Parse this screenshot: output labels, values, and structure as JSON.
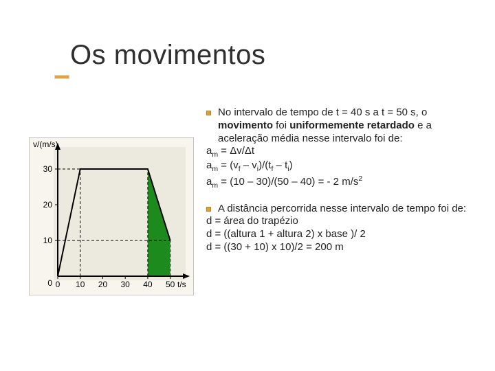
{
  "title": "Os movimentos",
  "block1": {
    "bullet_pre": "No intervalo de tempo de t = 40 s a t = 50 s, o ",
    "bullet_bold1": "movimento",
    "bullet_mid": " foi ",
    "bullet_bold2": "uniformemente retardado",
    "bullet_post": " e a aceleração média nesse intervalo foi de:",
    "eq1_lhs": "a",
    "eq1_sub": "m",
    "eq1_rhs": " = Δv/Δt",
    "eq2_lhs": "a",
    "eq2_sub": "m",
    "eq2_rhs_a": " = (v",
    "eq2_sub_f": "f",
    "eq2_rhs_b": " – v",
    "eq2_sub_i": "i",
    "eq2_rhs_c": ")/(t",
    "eq2_sub_tf": "f",
    "eq2_rhs_d": " – t",
    "eq2_sub_ti": "i",
    "eq2_rhs_e": ")",
    "eq3_lhs": "a",
    "eq3_sub": "m",
    "eq3_rhs_a": " = (10 – 30)/(50 – 40) = - 2 m/s",
    "eq3_sup": "2"
  },
  "block2": {
    "bullet_text": "A distância percorrida nesse intervalo de tempo foi de:",
    "eq1": "d = área do trapézio",
    "eq2": "d = ((altura 1 + altura 2) x base )/ 2",
    "eq3": "d = ((30 + 10) x 10)/2 = 200 m"
  },
  "chart": {
    "ylabel": "v/(m/s)",
    "xlabel": "t/s",
    "bg_inner": "#eceadf",
    "bg_outer": "#f7f5ee",
    "axis_color": "#000000",
    "line_color": "#000000",
    "dash_color": "#000000",
    "fill_color": "#1d8a1d",
    "x_ticks": [
      0,
      10,
      20,
      30,
      40,
      50
    ],
    "y_ticks": [
      0,
      10,
      20,
      30
    ],
    "xlim": [
      0,
      55
    ],
    "ylim": [
      0,
      35
    ],
    "points": [
      [
        0,
        0
      ],
      [
        10,
        30
      ],
      [
        40,
        30
      ],
      [
        50,
        10
      ]
    ],
    "fill_poly": [
      [
        40,
        0
      ],
      [
        40,
        30
      ],
      [
        50,
        10
      ],
      [
        50,
        0
      ]
    ],
    "y_dash": 30,
    "x_dash1": 10,
    "x_dash2": 40,
    "x_dash3": 50,
    "y_dash2": 10,
    "tick_fontsize": 12,
    "label_fontsize": 12
  }
}
